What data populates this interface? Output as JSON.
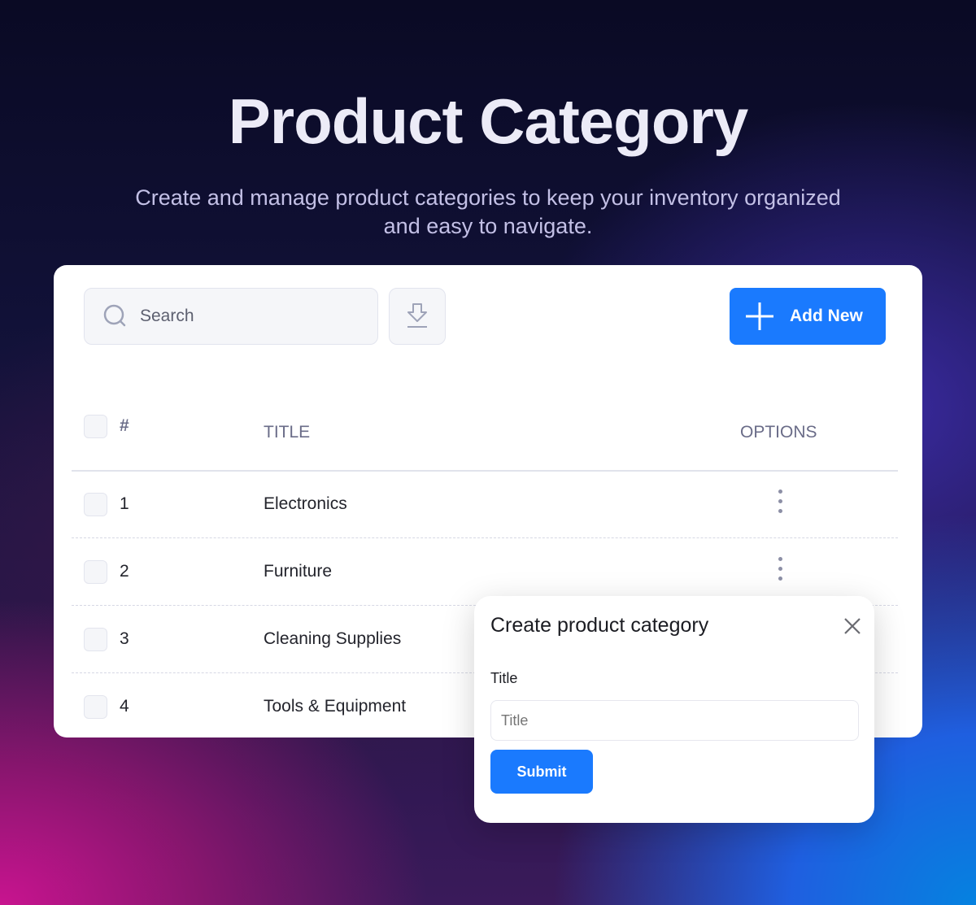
{
  "hero": {
    "title": "Product Category",
    "subtitle": "Create and manage product categories to keep your inventory organized and easy to navigate."
  },
  "toolbar": {
    "search_placeholder": "Search",
    "add_label": "Add New",
    "accent": "#1a7afe"
  },
  "table": {
    "headers": {
      "num": "#",
      "title": "TITLE",
      "options": "OPTIONS"
    },
    "rows": [
      {
        "num": "1",
        "title": "Electronics"
      },
      {
        "num": "2",
        "title": "Furniture"
      },
      {
        "num": "3",
        "title": "Cleaning Supplies"
      },
      {
        "num": "4",
        "title": "Tools & Equipment"
      }
    ]
  },
  "modal": {
    "title": "Create product category",
    "field_label": "Title",
    "field_placeholder": "Title",
    "submit_label": "Submit"
  }
}
